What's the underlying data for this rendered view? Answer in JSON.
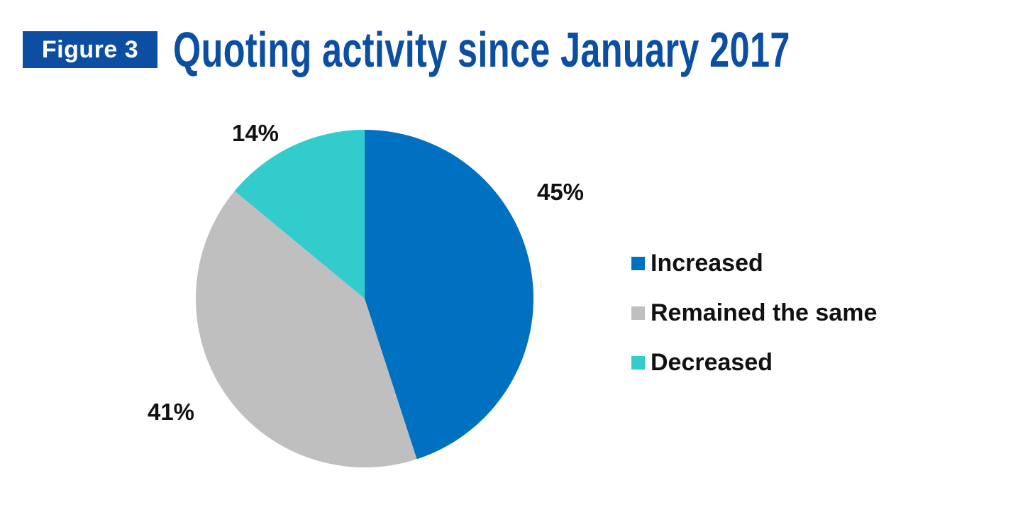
{
  "figure_label": "Figure 3",
  "title": "Quoting activity since January 2017",
  "colors": {
    "brand": "#0b4ea2",
    "increased": "#0070c0",
    "remained": "#bfbfbf",
    "decreased": "#33cccc"
  },
  "chart_data": {
    "type": "pie",
    "title": "Quoting activity since January 2017",
    "categories": [
      "Increased",
      "Remained the same",
      "Decreased"
    ],
    "values": [
      45,
      41,
      14
    ],
    "data_labels": [
      "45%",
      "41%",
      "14%"
    ],
    "colors": [
      "#0070c0",
      "#bfbfbf",
      "#33cccc"
    ],
    "start_angle": "12 o'clock",
    "direction": "clockwise",
    "legend_position": "right"
  }
}
